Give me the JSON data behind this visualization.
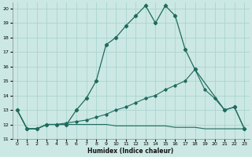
{
  "xlabel": "Humidex (Indice chaleur)",
  "bg_color": "#cce8e4",
  "grid_color": "#aad4cf",
  "line_color": "#1f6b5e",
  "xlim": [
    -0.5,
    23.5
  ],
  "ylim": [
    11,
    20.4
  ],
  "xticks": [
    0,
    1,
    2,
    3,
    4,
    5,
    6,
    7,
    8,
    9,
    10,
    11,
    12,
    13,
    14,
    15,
    16,
    17,
    18,
    19,
    20,
    21,
    22,
    23
  ],
  "yticks": [
    11,
    12,
    13,
    14,
    15,
    16,
    17,
    18,
    19,
    20
  ],
  "series1_x": [
    0,
    1,
    2,
    3,
    4,
    5,
    6,
    7,
    8,
    9,
    10,
    11,
    12,
    13,
    14,
    15,
    16,
    17,
    18,
    21,
    22,
    23
  ],
  "series1_y": [
    13.0,
    11.7,
    11.7,
    12.0,
    12.0,
    12.0,
    13.0,
    13.8,
    15.0,
    17.5,
    18.0,
    18.8,
    19.5,
    20.2,
    19.0,
    20.2,
    19.5,
    17.2,
    15.8,
    13.0,
    13.2,
    11.7
  ],
  "series2_x": [
    0,
    1,
    2,
    3,
    4,
    5,
    6,
    7,
    8,
    9,
    10,
    11,
    12,
    13,
    14,
    15,
    16,
    17,
    18,
    19,
    20,
    21,
    22,
    23
  ],
  "series2_y": [
    13.0,
    11.7,
    11.7,
    12.0,
    12.0,
    12.1,
    12.2,
    12.3,
    12.5,
    12.7,
    13.0,
    13.2,
    13.5,
    13.8,
    14.0,
    14.4,
    14.7,
    15.0,
    15.8,
    14.4,
    13.8,
    13.0,
    13.2,
    11.7
  ],
  "series3_x": [
    0,
    1,
    2,
    3,
    4,
    5,
    6,
    7,
    8,
    9,
    10,
    11,
    12,
    13,
    14,
    15,
    16,
    17,
    18,
    19,
    20,
    21,
    22,
    23
  ],
  "series3_y": [
    13.0,
    11.7,
    11.7,
    12.0,
    12.0,
    12.0,
    12.0,
    12.0,
    12.0,
    12.0,
    11.9,
    11.9,
    11.9,
    11.9,
    11.9,
    11.9,
    11.8,
    11.8,
    11.8,
    11.7,
    11.7,
    11.7,
    11.7,
    11.7
  ]
}
